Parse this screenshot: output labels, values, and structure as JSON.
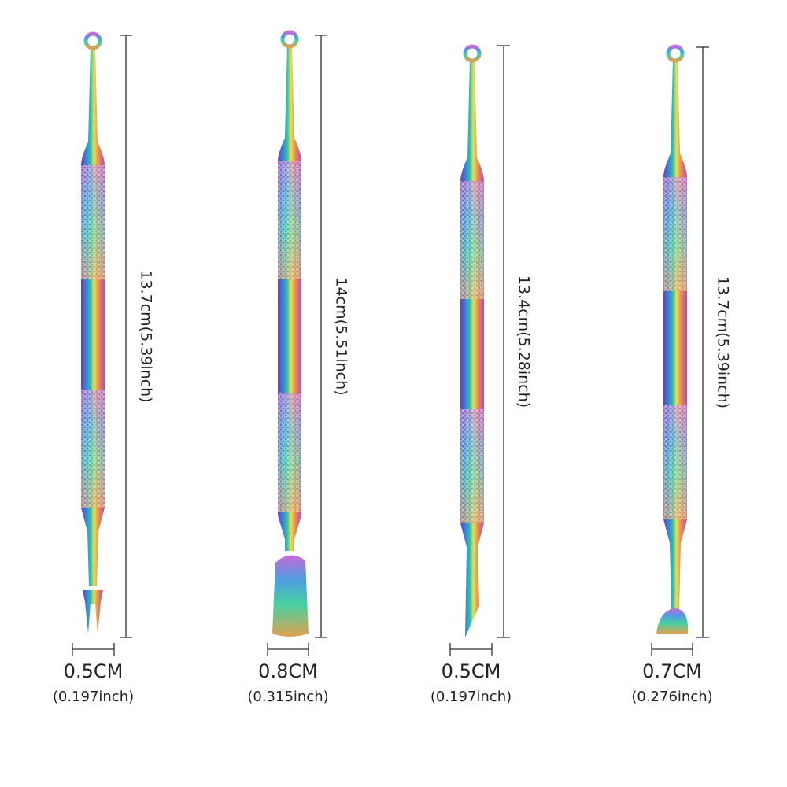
{
  "tools": [
    {
      "length": "13.7cm(5.39inch)",
      "width": "0.5CM",
      "width_inch": "(0.197inch)"
    },
    {
      "length": "14cm(5.51inch)",
      "width": "0.8CM",
      "width_inch": "(0.315inch)"
    },
    {
      "length": "13.4cm(5.28inch)",
      "width": "0.5CM",
      "width_inch": "(0.197inch)"
    },
    {
      "length": "13.7cm(5.39inch)",
      "width": "0.7CM",
      "width_inch": "(0.276inch)"
    }
  ]
}
